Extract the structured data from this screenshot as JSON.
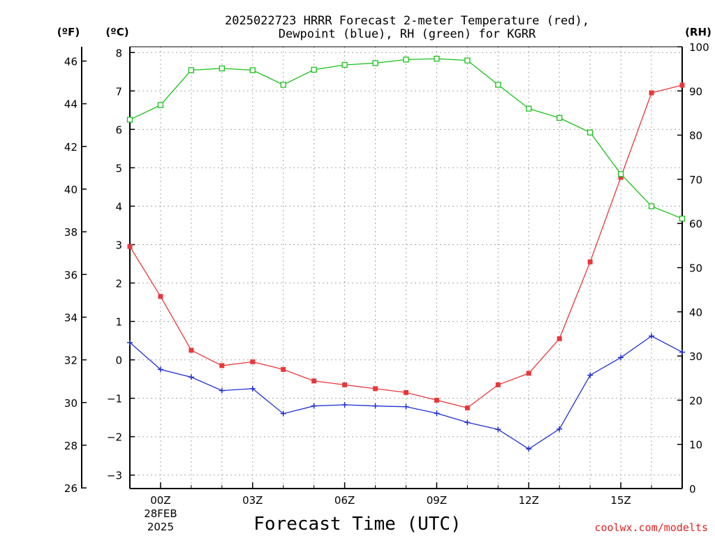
{
  "chart_data": {
    "type": "line",
    "title_line1": "2025022723 HRRR Forecast 2-meter Temperature (red),",
    "title_line2": "Dewpoint (blue), RH (green) for KGRR",
    "xlabel": "Forecast Time (UTC)",
    "credit": "coolwx.com/modelts",
    "unit_labels": {
      "fahrenheit": "(ºF)",
      "celsius": "(ºC)",
      "rh": "(RH)"
    },
    "x_hours": [
      -1,
      0,
      1,
      2,
      3,
      4,
      5,
      6,
      7,
      8,
      9,
      10,
      11,
      12,
      13,
      14,
      15,
      16,
      17
    ],
    "xlim": [
      -1,
      17
    ],
    "x_ticks": [
      {
        "hour": 0,
        "label": "00Z",
        "sub1": "28FEB",
        "sub2": "2025"
      },
      {
        "hour": 3,
        "label": "03Z"
      },
      {
        "hour": 6,
        "label": "06Z"
      },
      {
        "hour": 9,
        "label": "09Z"
      },
      {
        "hour": 12,
        "label": "12Z"
      },
      {
        "hour": 15,
        "label": "15Z"
      }
    ],
    "celsius_axis": {
      "ylim": [
        -3.35,
        8.15
      ],
      "ticks": [
        -3,
        -2,
        -1,
        0,
        1,
        2,
        3,
        4,
        5,
        6,
        7,
        8
      ]
    },
    "fahrenheit_axis": {
      "ylim": [
        25.97,
        46.67
      ],
      "ticks": [
        26,
        28,
        30,
        32,
        34,
        36,
        38,
        40,
        42,
        44,
        46
      ]
    },
    "rh_axis": {
      "ylim": [
        0,
        100
      ],
      "ticks": [
        0,
        10,
        20,
        30,
        40,
        50,
        60,
        70,
        80,
        90,
        100
      ]
    },
    "grid": true,
    "series": [
      {
        "name": "Temperature",
        "axis": "celsius",
        "color": "#e8383b",
        "marker": "filled-square",
        "values": [
          2.95,
          1.65,
          0.25,
          -0.15,
          -0.05,
          -0.25,
          -0.55,
          -0.65,
          -0.75,
          -0.85,
          -1.05,
          -1.25,
          -0.65,
          -0.35,
          0.55,
          2.55,
          4.75,
          6.95,
          7.15
        ]
      },
      {
        "name": "Dewpoint",
        "axis": "celsius",
        "color": "#2030d0",
        "marker": "plus",
        "values": [
          0.45,
          -0.25,
          -0.45,
          -0.8,
          -0.75,
          -1.4,
          -1.2,
          -1.17,
          -1.2,
          -1.22,
          -1.39,
          -1.63,
          -1.81,
          -2.32,
          -1.8,
          -0.4,
          0.06,
          0.62,
          0.2
        ]
      },
      {
        "name": "RH",
        "axis": "rh",
        "color": "#18c018",
        "marker": "open-square",
        "values": [
          83.5,
          86.8,
          94.7,
          95.1,
          94.7,
          91.4,
          94.8,
          95.9,
          96.3,
          97.1,
          97.3,
          96.9,
          91.4,
          86.0,
          83.9,
          80.6,
          71.2,
          63.9,
          61.1
        ]
      }
    ]
  }
}
